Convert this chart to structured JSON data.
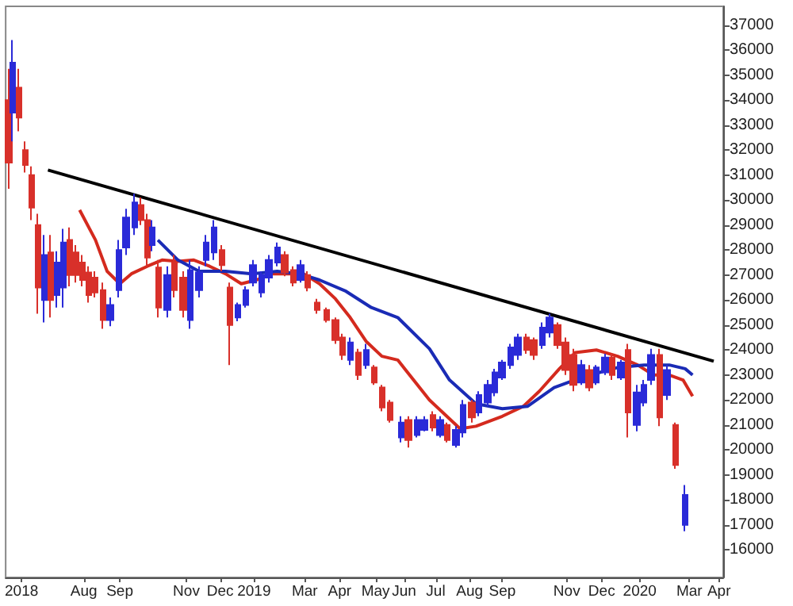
{
  "chart_data": {
    "type": "candlestick",
    "x": [
      "2018-06-02",
      "2018-06-06",
      "2018-06-12",
      "2018-06-18",
      "2018-06-24",
      "2018-06-30",
      "2018-07-06",
      "2018-07-12",
      "2018-07-18",
      "2018-07-24",
      "2018-07-30",
      "2018-08-05",
      "2018-08-11",
      "2018-08-17",
      "2018-08-23",
      "2018-08-30",
      "2018-09-06",
      "2018-09-14",
      "2018-09-21",
      "2018-09-29",
      "2018-10-05",
      "2018-10-11",
      "2018-10-16",
      "2018-10-22",
      "2018-10-30",
      "2018-11-06",
      "2018-11-14",
      "2018-11-21",
      "2018-11-29",
      "2018-12-06",
      "2018-12-13",
      "2018-12-21",
      "2018-12-28",
      "2019-01-05",
      "2019-01-12",
      "2019-01-19",
      "2019-01-27",
      "2019-02-03",
      "2019-02-11",
      "2019-02-18",
      "2019-02-26",
      "2019-03-05",
      "2019-03-12",
      "2019-03-21",
      "2019-03-30",
      "2019-04-07",
      "2019-04-14",
      "2019-04-21",
      "2019-04-29",
      "2019-05-06",
      "2019-05-14",
      "2019-05-21",
      "2019-05-29",
      "2019-06-08",
      "2019-06-15",
      "2019-06-23",
      "2019-06-30",
      "2019-07-08",
      "2019-07-15",
      "2019-07-22",
      "2019-07-30",
      "2019-08-06",
      "2019-08-14",
      "2019-08-21",
      "2019-08-29",
      "2019-09-05",
      "2019-09-12",
      "2019-09-20",
      "2019-09-27",
      "2019-10-05",
      "2019-10-12",
      "2019-10-20",
      "2019-10-27",
      "2019-11-03",
      "2019-11-11",
      "2019-11-18",
      "2019-11-26",
      "2019-12-03",
      "2019-12-10",
      "2019-12-18",
      "2019-12-25",
      "2020-01-02",
      "2020-01-09",
      "2020-01-17",
      "2020-01-24",
      "2020-01-31",
      "2020-02-08",
      "2020-02-15",
      "2020-02-23",
      "2020-03-03"
    ],
    "ohlc": [
      [
        34000,
        35250,
        30450,
        31500
      ],
      [
        33500,
        36400,
        32350,
        35500
      ],
      [
        34500,
        35250,
        32750,
        33300
      ],
      [
        32000,
        32350,
        31100,
        31400
      ],
      [
        31000,
        31350,
        29200,
        29700
      ],
      [
        29000,
        29450,
        25450,
        26500
      ],
      [
        26000,
        28600,
        25100,
        27800
      ],
      [
        27900,
        28600,
        25300,
        26000
      ],
      [
        26200,
        27950,
        25700,
        27500
      ],
      [
        26500,
        28850,
        25700,
        28300
      ],
      [
        28400,
        28900,
        26550,
        27000
      ],
      [
        27900,
        28200,
        26700,
        27000
      ],
      [
        27500,
        27800,
        26550,
        26800
      ],
      [
        27100,
        27350,
        25900,
        26200
      ],
      [
        26900,
        27150,
        26100,
        26300
      ],
      [
        26400,
        26700,
        24850,
        25200
      ],
      [
        25200,
        26100,
        24950,
        25800
      ],
      [
        26400,
        28400,
        26100,
        28000
      ],
      [
        28100,
        29650,
        27800,
        29300
      ],
      [
        28900,
        30250,
        28600,
        29900
      ],
      [
        29800,
        30100,
        29000,
        29200
      ],
      [
        29200,
        29450,
        27350,
        27700
      ],
      [
        28200,
        29200,
        27950,
        28900
      ],
      [
        27300,
        27600,
        25300,
        25700
      ],
      [
        25600,
        27350,
        25300,
        27000
      ],
      [
        27500,
        27800,
        26100,
        26400
      ],
      [
        26900,
        27150,
        25300,
        25600
      ],
      [
        25200,
        27600,
        24850,
        27200
      ],
      [
        26400,
        27350,
        26100,
        27100
      ],
      [
        27600,
        28600,
        27350,
        28300
      ],
      [
        27900,
        29200,
        27600,
        28900
      ],
      [
        28000,
        28200,
        27150,
        27400
      ],
      [
        26500,
        26700,
        23400,
        25000
      ],
      [
        25300,
        25900,
        25150,
        25800
      ],
      [
        25800,
        26550,
        25700,
        26400
      ],
      [
        26700,
        27600,
        26550,
        27400
      ],
      [
        26300,
        27150,
        26100,
        27000
      ],
      [
        26900,
        27800,
        26700,
        27600
      ],
      [
        27500,
        28300,
        27350,
        28100
      ],
      [
        27800,
        27950,
        26950,
        27100
      ],
      [
        27200,
        27350,
        26550,
        26700
      ],
      [
        26800,
        27600,
        26700,
        27400
      ],
      [
        27000,
        27150,
        26350,
        26500
      ],
      [
        25900,
        26050,
        25450,
        25600
      ],
      [
        25600,
        25700,
        25100,
        25200
      ],
      [
        25200,
        25300,
        24250,
        24400
      ],
      [
        24500,
        24650,
        23600,
        23800
      ],
      [
        23600,
        24500,
        23400,
        24300
      ],
      [
        23900,
        24050,
        22800,
        23000
      ],
      [
        23400,
        24250,
        23250,
        24000
      ],
      [
        23300,
        23400,
        22600,
        22700
      ],
      [
        22500,
        22600,
        21550,
        21700
      ],
      [
        21900,
        22000,
        21100,
        21200
      ],
      [
        20500,
        21350,
        20300,
        21100
      ],
      [
        21200,
        21350,
        20100,
        20400
      ],
      [
        20600,
        21350,
        20500,
        21200
      ],
      [
        20800,
        21350,
        20750,
        21200
      ],
      [
        21400,
        21550,
        20750,
        20900
      ],
      [
        20600,
        21350,
        20500,
        21200
      ],
      [
        21000,
        21100,
        20300,
        20400
      ],
      [
        20200,
        20950,
        20100,
        20800
      ],
      [
        20700,
        22000,
        20500,
        21800
      ],
      [
        21900,
        22000,
        21100,
        21300
      ],
      [
        21500,
        22350,
        21350,
        22200
      ],
      [
        21900,
        22800,
        21750,
        22600
      ],
      [
        22300,
        23250,
        22150,
        23100
      ],
      [
        22900,
        23600,
        22800,
        23500
      ],
      [
        23400,
        24250,
        23250,
        24100
      ],
      [
        23800,
        24650,
        23600,
        24500
      ],
      [
        24500,
        24650,
        23850,
        24000
      ],
      [
        24400,
        24500,
        23600,
        23800
      ],
      [
        24200,
        25100,
        24050,
        24900
      ],
      [
        24700,
        25450,
        24500,
        25300
      ],
      [
        25000,
        25100,
        24050,
        24200
      ],
      [
        24300,
        24500,
        23000,
        23200
      ],
      [
        23800,
        24050,
        22350,
        22600
      ],
      [
        22700,
        23600,
        22600,
        23400
      ],
      [
        23200,
        23400,
        22350,
        22500
      ],
      [
        22700,
        23400,
        22600,
        23300
      ],
      [
        23100,
        23850,
        23000,
        23700
      ],
      [
        23700,
        23850,
        22800,
        23000
      ],
      [
        22900,
        23600,
        22800,
        23500
      ],
      [
        24000,
        24250,
        20500,
        21500
      ],
      [
        21000,
        22600,
        20750,
        22300
      ],
      [
        21900,
        22800,
        21750,
        22600
      ],
      [
        22800,
        24050,
        22600,
        23800
      ],
      [
        23800,
        24050,
        20950,
        21300
      ],
      [
        22200,
        23400,
        22000,
        23200
      ],
      [
        21000,
        21100,
        19250,
        19400
      ],
      [
        17000,
        18600,
        16750,
        18200
      ]
    ],
    "colors": [
      "#d8302a",
      "#2a2ad8",
      "#d8302a",
      "#d8302a",
      "#d8302a",
      "#d8302a",
      "#2a2ad8",
      "#d8302a",
      "#2a2ad8",
      "#2a2ad8",
      "#d8302a",
      "#d8302a",
      "#d8302a",
      "#d8302a",
      "#d8302a",
      "#d8302a",
      "#2a2ad8",
      "#2a2ad8",
      "#2a2ad8",
      "#2a2ad8",
      "#d8302a",
      "#d8302a",
      "#2a2ad8",
      "#d8302a",
      "#2a2ad8",
      "#d8302a",
      "#d8302a",
      "#2a2ad8",
      "#2a2ad8",
      "#2a2ad8",
      "#2a2ad8",
      "#d8302a",
      "#d8302a",
      "#2a2ad8",
      "#2a2ad8",
      "#2a2ad8",
      "#2a2ad8",
      "#2a2ad8",
      "#2a2ad8",
      "#d8302a",
      "#d8302a",
      "#2a2ad8",
      "#d8302a",
      "#d8302a",
      "#d8302a",
      "#d8302a",
      "#d8302a",
      "#2a2ad8",
      "#d8302a",
      "#2a2ad8",
      "#d8302a",
      "#d8302a",
      "#d8302a",
      "#2a2ad8",
      "#d8302a",
      "#2a2ad8",
      "#2a2ad8",
      "#d8302a",
      "#2a2ad8",
      "#d8302a",
      "#2a2ad8",
      "#2a2ad8",
      "#d8302a",
      "#2a2ad8",
      "#2a2ad8",
      "#2a2ad8",
      "#2a2ad8",
      "#2a2ad8",
      "#2a2ad8",
      "#d8302a",
      "#d8302a",
      "#2a2ad8",
      "#2a2ad8",
      "#d8302a",
      "#d8302a",
      "#d8302a",
      "#2a2ad8",
      "#d8302a",
      "#2a2ad8",
      "#2a2ad8",
      "#d8302a",
      "#2a2ad8",
      "#d8302a",
      "#2a2ad8",
      "#2a2ad8",
      "#2a2ad8",
      "#d8302a",
      "#2a2ad8",
      "#d8302a",
      "#2a2ad8"
    ],
    "series": [
      {
        "type": "line",
        "color": "#d42a1e",
        "x": [
          "2018-08-08",
          "2018-08-23",
          "2018-09-03",
          "2018-09-15",
          "2018-09-26",
          "2018-10-11",
          "2018-10-25",
          "2018-11-09",
          "2018-11-24",
          "2018-12-09",
          "2018-12-24",
          "2019-01-08",
          "2019-01-22",
          "2019-02-06",
          "2019-02-21",
          "2019-03-08",
          "2019-03-23",
          "2019-04-07",
          "2019-04-21",
          "2019-05-06",
          "2019-05-21",
          "2019-06-05",
          "2019-07-05",
          "2019-08-03",
          "2019-08-18",
          "2019-09-12",
          "2019-10-02",
          "2019-10-17",
          "2019-11-05",
          "2019-11-20",
          "2019-12-10",
          "2019-12-30",
          "2020-01-18",
          "2020-02-02",
          "2020-02-17",
          "2020-03-01",
          "2020-03-10"
        ],
        "values": [
          29600,
          28400,
          27150,
          26650,
          27050,
          27350,
          27600,
          27550,
          27600,
          27350,
          27050,
          26650,
          26800,
          27050,
          27050,
          27050,
          26650,
          26050,
          25300,
          24350,
          23750,
          23600,
          22000,
          20850,
          20950,
          21350,
          21750,
          22350,
          23250,
          23900,
          24000,
          23750,
          23400,
          23000,
          23000,
          22800,
          22150
        ]
      },
      {
        "type": "line",
        "color": "#1a2bb5",
        "x": [
          "2018-10-21",
          "2018-11-09",
          "2018-11-29",
          "2018-12-24",
          "2019-01-18",
          "2019-02-11",
          "2019-03-04",
          "2019-03-23",
          "2019-04-17",
          "2019-05-11",
          "2019-06-05",
          "2019-07-05",
          "2019-07-24",
          "2019-08-18",
          "2019-09-12",
          "2019-10-06",
          "2019-10-31",
          "2019-11-26",
          "2019-12-30",
          "2020-01-24",
          "2020-02-17",
          "2020-03-03",
          "2020-03-10"
        ],
        "values": [
          28400,
          27600,
          27150,
          27150,
          27050,
          27150,
          27050,
          26800,
          26350,
          25700,
          25300,
          24050,
          22800,
          21850,
          21650,
          21750,
          22500,
          22900,
          23300,
          23400,
          23400,
          23250,
          23000
        ]
      },
      {
        "type": "line",
        "color": "#000000",
        "x": [
          "2018-07-09",
          "2020-03-30"
        ],
        "values": [
          31200,
          23550
        ]
      }
    ],
    "marker": "none",
    "xlim": [
      "2018-05-30",
      "2020-04-08"
    ],
    "xticks": [
      {
        "value": "2018-06-14",
        "label": "2018"
      },
      {
        "value": "2018-08-12",
        "label": "Aug"
      },
      {
        "value": "2018-09-15",
        "label": "Sep"
      },
      {
        "value": "2018-11-17",
        "label": "Nov"
      },
      {
        "value": "2018-12-19",
        "label": "Dec"
      },
      {
        "value": "2019-01-20",
        "label": "2019"
      },
      {
        "value": "2019-03-09",
        "label": "Mar"
      },
      {
        "value": "2019-04-11",
        "label": "Apr"
      },
      {
        "value": "2019-05-15",
        "label": "May"
      },
      {
        "value": "2019-06-11",
        "label": "Jun"
      },
      {
        "value": "2019-07-11",
        "label": "Jul"
      },
      {
        "value": "2019-08-12",
        "label": "Aug"
      },
      {
        "value": "2019-09-12",
        "label": "Sep"
      },
      {
        "value": "2019-11-12",
        "label": "Nov"
      },
      {
        "value": "2019-12-15",
        "label": "Dec"
      },
      {
        "value": "2020-01-20",
        "label": "2020"
      },
      {
        "value": "2020-03-07",
        "label": "Mar"
      },
      {
        "value": "2020-04-04",
        "label": "Apr"
      }
    ],
    "ylim": [
      14900,
      37750
    ],
    "yticks": [
      16000,
      17000,
      18000,
      19000,
      20000,
      21000,
      22000,
      23000,
      24000,
      25000,
      26000,
      27000,
      28000,
      29000,
      30000,
      31000,
      32000,
      33000,
      34000,
      35000,
      36000,
      37000
    ],
    "grid": false
  }
}
